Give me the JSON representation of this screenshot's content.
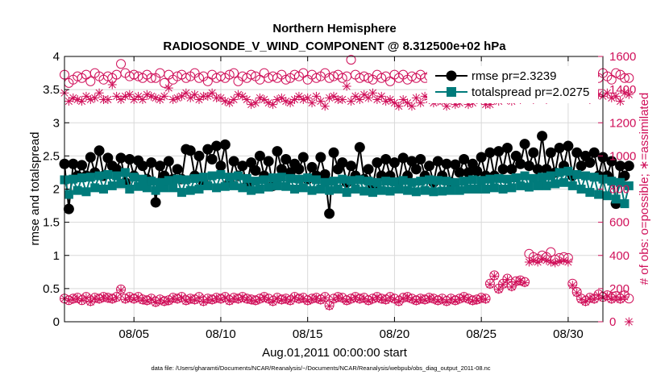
{
  "chart_data": {
    "type": "line",
    "title_line1": "Northern Hemisphere",
    "title_line2": "RADIOSONDE_V_WIND_COMPONENT @ 8.312500e+02 hPa",
    "xlabel": "Aug.01,2011 00:00:00 start",
    "ylabel": "rmse and totalspread",
    "ylabel_right": "# of obs: o=possible; ∗=assimilated",
    "footnote": "data file: /Users/gharamti/Documents/NCAR/Reanalysis/~/Documents/NCAR/Reanalysis/webpub/obs_diag_output_2011-08.nc",
    "xlim": [
      1,
      32
    ],
    "ylim": [
      0,
      4
    ],
    "ylim_right": [
      0,
      1600
    ],
    "x_ticks": [
      5,
      10,
      15,
      20,
      25,
      30
    ],
    "x_tick_labels": [
      "08/05",
      "08/10",
      "08/15",
      "08/20",
      "08/25",
      "08/30"
    ],
    "y_ticks": [
      0,
      0.5,
      1,
      1.5,
      2,
      2.5,
      3,
      3.5,
      4
    ],
    "y_tick_labels": [
      "0",
      "0.5",
      "1",
      "1.5",
      "2",
      "2.5",
      "3",
      "3.5",
      "4"
    ],
    "y_right_ticks": [
      0,
      200,
      400,
      600,
      800,
      1000,
      1200,
      1400,
      1600
    ],
    "y_right_tick_labels": [
      "0",
      "200",
      "400",
      "600",
      "800",
      "1000",
      "1200",
      "1400",
      "1600"
    ],
    "legend": {
      "position": "top-right",
      "entries": [
        {
          "label": "rmse pr=2.3239",
          "color": "#000000"
        },
        {
          "label": "totalspread pr=2.0275",
          "color": "#007b7b"
        }
      ]
    },
    "colors": {
      "rmse": "#000000",
      "spread": "#007b7b",
      "obs": "#d0105a"
    },
    "x_step": 0.25,
    "series": [
      {
        "name": "rmse",
        "axis": "left",
        "marker": "filled-circle",
        "values": [
          2.38,
          1.7,
          2.38,
          2.2,
          2.36,
          2.2,
          2.48,
          2.25,
          2.58,
          2.2,
          2.47,
          2.35,
          2.3,
          2.47,
          2.1,
          2.45,
          2.2,
          2.43,
          2.35,
          2.15,
          2.4,
          1.8,
          2.35,
          2.2,
          2.42,
          2.15,
          2.3,
          2.15,
          2.6,
          2.58,
          2.2,
          2.5,
          2.1,
          2.6,
          2.45,
          2.65,
          2.35,
          2.67,
          2.1,
          2.42,
          2.2,
          2.35,
          2.05,
          2.4,
          2.28,
          2.5,
          2.2,
          2.42,
          2.05,
          2.57,
          2.3,
          2.45,
          2.25,
          2.38,
          2.3,
          2.48,
          2.15,
          2.33,
          2.2,
          2.48,
          2.22,
          1.63,
          2.55,
          2.3,
          2.4,
          2.1,
          2.35,
          2.2,
          2.63,
          2.15,
          2.3,
          2.05,
          2.4,
          2.2,
          2.45,
          2.2,
          2.4,
          2.1,
          2.47,
          2.2,
          2.42,
          2.3,
          2.45,
          2.2,
          2.35,
          2.1,
          2.42,
          2.2,
          2.38,
          2.1,
          2.37,
          2.25,
          2.45,
          2.25,
          2.38,
          2.27,
          2.48,
          2.2,
          2.55,
          2.2,
          2.57,
          2.3,
          2.62,
          2.3,
          2.5,
          2.38,
          2.68,
          2.35,
          2.55,
          2.3,
          2.8,
          2.3,
          2.55,
          2.25,
          2.62,
          2.35,
          2.65,
          2.2,
          2.55,
          2.35,
          2.5,
          2.4,
          2.55,
          2.2,
          2.48,
          2.2,
          2.42,
          1.78,
          2.35,
          2.2,
          2.35
        ]
      },
      {
        "name": "totalspread",
        "axis": "left",
        "marker": "filled-square",
        "values": [
          2.14,
          1.92,
          2.15,
          1.98,
          2.17,
          1.96,
          2.18,
          2.02,
          2.2,
          2.0,
          2.22,
          2.05,
          2.2,
          2.08,
          2.25,
          2.0,
          2.18,
          2.04,
          2.15,
          2.02,
          2.12,
          1.98,
          2.1,
          2.02,
          2.13,
          2.02,
          2.15,
          1.95,
          2.14,
          1.98,
          2.16,
          2.0,
          2.18,
          2.05,
          2.2,
          2.02,
          2.22,
          2.04,
          2.18,
          2.05,
          2.2,
          2.02,
          2.16,
          1.98,
          2.12,
          2.0,
          2.14,
          2.03,
          2.17,
          2.05,
          2.18,
          2.04,
          2.16,
          2.0,
          2.15,
          2.02,
          2.17,
          1.98,
          2.14,
          2.0,
          2.1,
          1.98,
          2.12,
          2.0,
          2.15,
          1.95,
          2.13,
          2.0,
          2.14,
          1.97,
          2.12,
          1.95,
          2.1,
          1.98,
          2.12,
          1.97,
          2.11,
          2.0,
          2.13,
          1.98,
          2.1,
          1.96,
          2.12,
          1.98,
          2.14,
          1.96,
          2.13,
          1.97,
          2.12,
          1.98,
          2.1,
          1.98,
          2.12,
          2.0,
          2.14,
          2.0,
          2.13,
          2.0,
          2.15,
          2.02,
          2.16,
          2.0,
          2.15,
          2.02,
          2.17,
          2.05,
          2.2,
          2.03,
          2.16,
          2.05,
          2.18,
          2.05,
          2.2,
          2.08,
          2.25,
          2.1,
          2.27,
          2.05,
          2.22,
          2.0,
          2.2,
          1.95,
          2.18,
          1.92,
          2.15,
          1.9,
          2.12,
          1.85,
          2.1,
          1.78,
          2.05
        ]
      },
      {
        "name": "obs possible",
        "axis": "right",
        "marker": "open-circle",
        "values": [
          1490,
          1440,
          1460,
          1480,
          1470,
          1490,
          1450,
          1500,
          1480,
          1460,
          1480,
          1470,
          1490,
          1555,
          1500,
          1480,
          1490,
          1480,
          1470,
          1490,
          1470,
          1470,
          1500,
          1440,
          1490,
          1460,
          1480,
          1490,
          1470,
          1480,
          1500,
          1470,
          1480,
          1450,
          1490,
          1470,
          1480,
          1470,
          1490,
          1500,
          1450,
          1480,
          1470,
          1490,
          1480,
          1460,
          1500,
          1470,
          1480,
          1470,
          1490,
          1460,
          1470,
          1490,
          1480,
          1500,
          1460,
          1490,
          1470,
          1480,
          1500,
          1470,
          1480,
          1490,
          1470,
          1480,
          1580,
          1490,
          1470,
          1480,
          1470,
          1460,
          1490,
          1470,
          1480,
          1450,
          1490,
          1470,
          1490,
          1460,
          1480,
          1470,
          1490,
          1470,
          1480,
          1500,
          1450,
          1490,
          1460,
          1480,
          1490,
          1470,
          1480,
          1450,
          1500,
          1470,
          1470,
          1480,
          1500,
          1480,
          1490,
          1480,
          1480,
          1460,
          1500,
          1470,
          1470,
          1490,
          1480,
          1490,
          1460,
          1450,
          1490,
          1500,
          1470,
          1460,
          1480,
          1490,
          1470,
          1500,
          1470,
          1450,
          1490,
          1470,
          1500,
          1480,
          1460,
          1500,
          1490,
          1470,
          1470
        ]
      },
      {
        "name": "obs assimilated",
        "axis": "right",
        "marker": "asterisk",
        "values": [
          1380,
          1330,
          1350,
          1340,
          1330,
          1360,
          1340,
          1350,
          1380,
          1340,
          1340,
          1430,
          1360,
          1340,
          1360,
          1370,
          1340,
          1360,
          1340,
          1370,
          1360,
          1350,
          1340,
          1360,
          1410,
          1340,
          1350,
          1360,
          1380,
          1350,
          1370,
          1340,
          1360,
          1360,
          1380,
          1350,
          1350,
          1330,
          1320,
          1340,
          1370,
          1360,
          1340,
          1310,
          1320,
          1350,
          1340,
          1320,
          1310,
          1340,
          1350,
          1330,
          1320,
          1340,
          1360,
          1340,
          1350,
          1320,
          1360,
          1330,
          1300,
          1350,
          1360,
          1340,
          1340,
          1420,
          1330,
          1360,
          1340,
          1370,
          1350,
          1380,
          1340,
          1360,
          1330,
          1340,
          1320,
          1300,
          1340,
          1320,
          1300,
          1350,
          1320,
          1360,
          1340,
          1320,
          1330,
          1330,
          1300,
          1340,
          1310,
          1320,
          1350,
          1310,
          1320,
          1340,
          1340,
          1310,
          1310,
          1340,
          1330,
          1360,
          1340,
          1330,
          1370,
          1340,
          1350,
          1380,
          1340,
          1360,
          1370,
          1340,
          1360,
          1350,
          1380,
          1360,
          1390,
          1370,
          1350,
          1390,
          1360,
          1340,
          1380,
          1370,
          1360,
          1380,
          1350,
          1360,
          1330,
          1380,
          1370
        ]
      },
      {
        "name": "obs possible low",
        "axis": "right",
        "marker": "open-circle",
        "values": [
          140,
          130,
          140,
          145,
          130,
          150,
          125,
          145,
          140,
          150,
          145,
          140,
          150,
          195,
          140,
          150,
          140,
          150,
          135,
          130,
          140,
          120,
          135,
          125,
          130,
          145,
          140,
          150,
          130,
          140,
          135,
          150,
          125,
          140,
          135,
          145,
          140,
          150,
          130,
          145,
          140,
          150,
          140,
          135,
          130,
          140,
          150,
          140,
          125,
          145,
          135,
          140,
          130,
          150,
          140,
          145,
          130,
          140,
          145,
          135,
          150,
          100,
          140,
          150,
          145,
          130,
          140,
          150,
          140,
          145,
          130,
          140,
          150,
          140,
          135,
          150,
          140,
          125,
          145,
          150,
          140,
          130,
          140,
          135,
          145,
          140,
          130,
          140,
          125,
          140,
          130,
          140,
          150,
          140,
          130,
          135,
          145,
          140,
          230,
          280,
          200,
          230,
          260,
          215,
          245,
          250,
          240,
          410,
          390,
          380,
          400,
          390,
          420,
          375,
          385,
          390,
          385,
          230,
          180,
          140,
          125,
          145,
          140,
          165,
          150,
          160,
          140,
          155,
          140,
          160,
          140
        ]
      },
      {
        "name": "obs assimilated low",
        "axis": "right",
        "marker": "asterisk",
        "values": [
          140,
          130,
          135,
          140,
          130,
          145,
          120,
          140,
          135,
          145,
          140,
          135,
          145,
          190,
          135,
          145,
          135,
          145,
          130,
          125,
          135,
          115,
          130,
          120,
          125,
          140,
          135,
          145,
          125,
          135,
          130,
          145,
          120,
          135,
          130,
          140,
          135,
          145,
          125,
          140,
          135,
          145,
          135,
          130,
          125,
          135,
          145,
          135,
          120,
          140,
          130,
          135,
          125,
          145,
          135,
          140,
          125,
          135,
          140,
          130,
          145,
          95,
          135,
          145,
          140,
          125,
          135,
          145,
          135,
          140,
          125,
          135,
          145,
          135,
          130,
          145,
          135,
          120,
          140,
          145,
          135,
          125,
          135,
          130,
          140,
          135,
          125,
          135,
          120,
          135,
          125,
          135,
          145,
          135,
          125,
          130,
          140,
          135,
          225,
          275,
          195,
          225,
          255,
          210,
          240,
          245,
          235,
          360,
          370,
          360,
          380,
          370,
          360,
          355,
          365,
          370,
          360,
          220,
          175,
          135,
          120,
          140,
          135,
          160,
          145,
          155,
          135,
          150,
          135,
          150,
          0
        ]
      }
    ]
  }
}
